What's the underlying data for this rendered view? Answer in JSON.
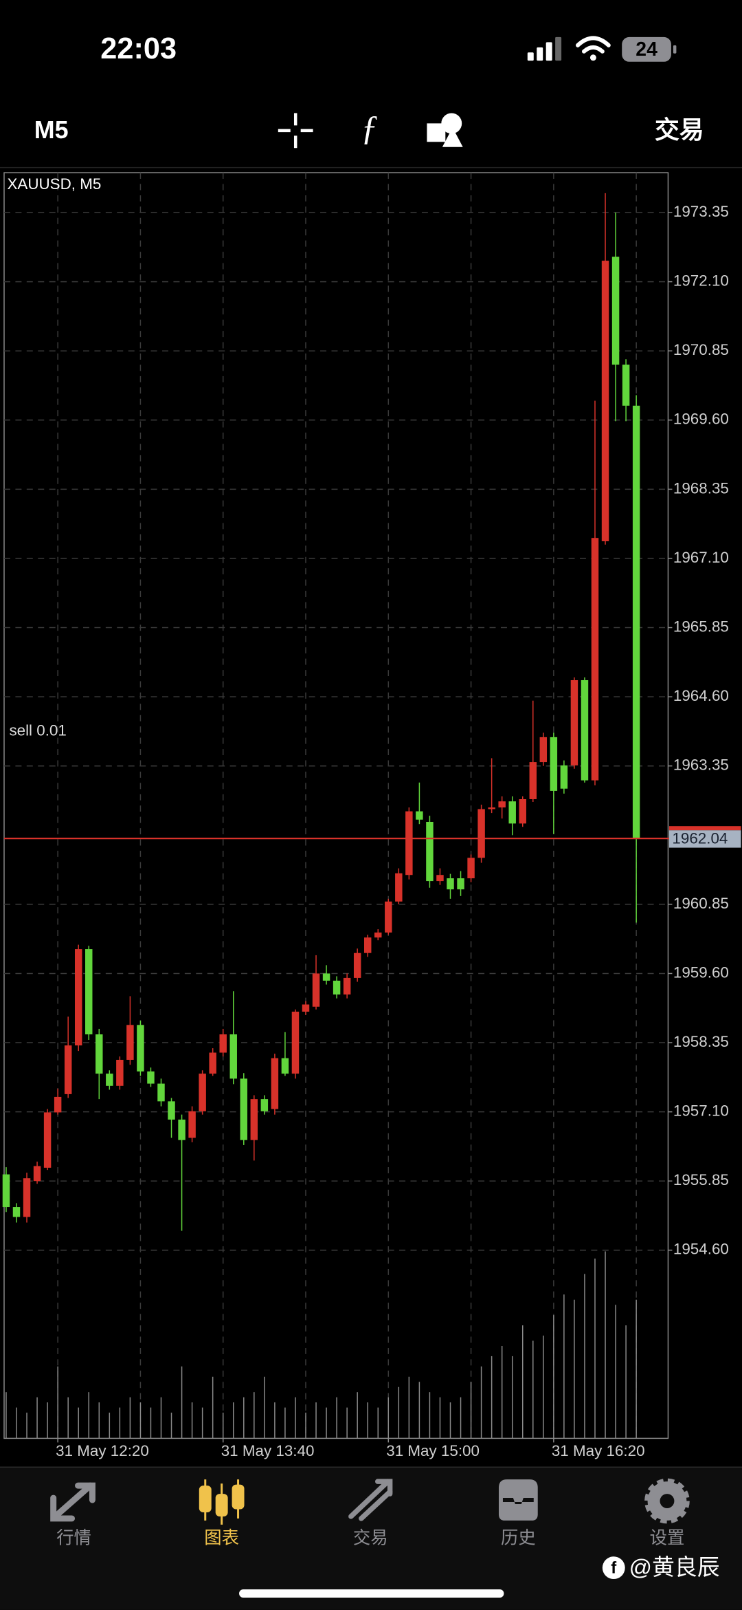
{
  "status_bar": {
    "time": "22:03",
    "battery": "24"
  },
  "toolbar": {
    "timeframe": "M5",
    "trade": "交易"
  },
  "chart_data": {
    "type": "candlestick",
    "title": "XAUUSD, M5",
    "annotation": "sell 0.01",
    "categories": [
      null,
      null,
      null,
      null,
      null,
      "31 May 12:20",
      null,
      null,
      null,
      null,
      null,
      null,
      null,
      null,
      null,
      null,
      null,
      null,
      null,
      null,
      null,
      "31 May 13:40",
      null,
      null,
      null,
      null,
      null,
      null,
      null,
      null,
      null,
      null,
      null,
      null,
      null,
      null,
      null,
      "31 May 15:00",
      null,
      null,
      null,
      null,
      null,
      null,
      null,
      null,
      null,
      null,
      null,
      null,
      null,
      null,
      null,
      "31 May 16:20",
      null,
      null,
      null,
      null,
      null,
      null,
      null,
      null
    ],
    "open": [
      1955.97,
      1955.38,
      1955.2,
      1955.85,
      1956.09,
      1957.09,
      1957.42,
      1958.3,
      1960.04,
      1958.5,
      1957.79,
      1957.57,
      1958.04,
      1958.67,
      1957.83,
      1957.61,
      1957.29,
      1956.96,
      1956.63,
      1957.11,
      1957.79,
      1958.17,
      1958.5,
      1957.7,
      1956.59,
      1957.33,
      1957.15,
      1958.07,
      1957.79,
      1958.91,
      1959.0,
      1959.6,
      1959.47,
      1959.22,
      1959.52,
      1959.97,
      1960.25,
      1960.34,
      1960.9,
      1961.38,
      1962.53,
      1962.34,
      1961.27,
      1961.32,
      1961.32,
      1961.32,
      1961.69,
      1962.57,
      1962.6,
      1962.71,
      1962.31,
      1962.75,
      1963.42,
      1963.87,
      1963.36,
      1963.36,
      1964.9,
      1963.09,
      1967.41,
      1972.55,
      1970.6,
      1969.86
    ],
    "high": [
      1956.1,
      1955.45,
      1956.0,
      1956.2,
      1957.15,
      1957.52,
      1958.82,
      1960.12,
      1960.1,
      1958.6,
      1957.85,
      1958.1,
      1959.19,
      1958.75,
      1957.9,
      1957.7,
      1957.35,
      1957.05,
      1957.2,
      1957.85,
      1958.25,
      1958.6,
      1959.28,
      1957.8,
      1957.4,
      1957.4,
      1958.15,
      1958.54,
      1958.95,
      1959.1,
      1959.93,
      1959.75,
      1959.55,
      1959.6,
      1960.05,
      1960.3,
      1960.4,
      1960.95,
      1961.5,
      1962.6,
      1963.05,
      1962.45,
      1961.5,
      1961.4,
      1961.45,
      1961.75,
      1962.65,
      1963.49,
      1962.8,
      1962.8,
      1962.8,
      1964.53,
      1963.95,
      1963.95,
      1963.45,
      1964.95,
      1964.95,
      1969.95,
      1973.7,
      1973.35,
      1970.7,
      1970.05
    ],
    "low": [
      1955.29,
      1955.1,
      1955.1,
      1955.8,
      1956.05,
      1957.05,
      1957.35,
      1958.2,
      1958.4,
      1957.33,
      1957.5,
      1957.5,
      1957.95,
      1957.75,
      1957.55,
      1957.2,
      1956.63,
      1954.95,
      1956.55,
      1957.05,
      1957.75,
      1958.1,
      1957.6,
      1956.5,
      1956.22,
      1957.05,
      1957.05,
      1957.75,
      1957.7,
      1958.85,
      1958.95,
      1959.4,
      1959.15,
      1959.15,
      1959.45,
      1959.9,
      1960.2,
      1960.3,
      1960.85,
      1961.3,
      1962.3,
      1961.15,
      1961.2,
      1960.95,
      1961.0,
      1961.25,
      1961.6,
      1962.5,
      1962.4,
      1962.1,
      1962.25,
      1962.7,
      1963.35,
      1962.12,
      1962.85,
      1963.3,
      1963.05,
      1963.0,
      1967.35,
      1969.58,
      1969.58,
      1960.52
    ],
    "close": [
      1955.38,
      1955.2,
      1955.9,
      1956.12,
      1957.09,
      1957.37,
      1958.3,
      1960.04,
      1958.5,
      1957.79,
      1957.57,
      1958.04,
      1958.67,
      1957.83,
      1957.61,
      1957.29,
      1956.96,
      1956.59,
      1957.11,
      1957.79,
      1958.17,
      1958.5,
      1957.7,
      1956.59,
      1957.33,
      1957.11,
      1958.07,
      1957.79,
      1958.91,
      1959.04,
      1959.6,
      1959.47,
      1959.22,
      1959.52,
      1959.97,
      1960.25,
      1960.34,
      1960.9,
      1961.41,
      1962.53,
      1962.38,
      1961.27,
      1961.38,
      1961.12,
      1961.12,
      1961.69,
      1962.57,
      1962.6,
      1962.71,
      1962.31,
      1962.75,
      1963.42,
      1963.87,
      1962.9,
      1962.94,
      1964.9,
      1963.09,
      1967.47,
      1972.48,
      1970.6,
      1969.86,
      1962.04
    ],
    "volumes": [
      45,
      30,
      25,
      40,
      35,
      70,
      40,
      30,
      45,
      35,
      25,
      30,
      40,
      35,
      30,
      40,
      25,
      70,
      35,
      30,
      60,
      25,
      35,
      40,
      45,
      60,
      35,
      30,
      40,
      25,
      35,
      30,
      40,
      30,
      45,
      35,
      30,
      40,
      50,
      60,
      55,
      45,
      40,
      35,
      40,
      55,
      70,
      80,
      90,
      80,
      110,
      95,
      100,
      120,
      140,
      135,
      160,
      175,
      182,
      130,
      110,
      135
    ],
    "up_color": "#d8322a",
    "down_color": "#62d63c",
    "volume_color": "#8a8a8a",
    "current_price": 1962.04,
    "ylim": [
      1951.2,
      1974.07
    ],
    "yticks": [
      {
        "value": 1954.6,
        "label": "1954.60"
      },
      1955.85,
      {
        "value": 1957.1,
        "label": "1957.10"
      },
      1958.35,
      {
        "value": 1959.6,
        "label": "1959.60"
      },
      1960.85,
      1963.35,
      {
        "value": 1964.6,
        "label": "1964.60"
      },
      1965.85,
      {
        "value": 1967.1,
        "label": "1967.10"
      },
      1968.35,
      {
        "value": 1969.6,
        "label": "1969.60"
      },
      1970.85,
      {
        "value": 1972.1,
        "label": "1972.10"
      },
      1973.35
    ],
    "grid": true
  },
  "tabs": [
    "行情",
    "图表",
    "交易",
    "历史",
    "设置"
  ],
  "active_tab": 1,
  "watermark": "@黄良辰"
}
